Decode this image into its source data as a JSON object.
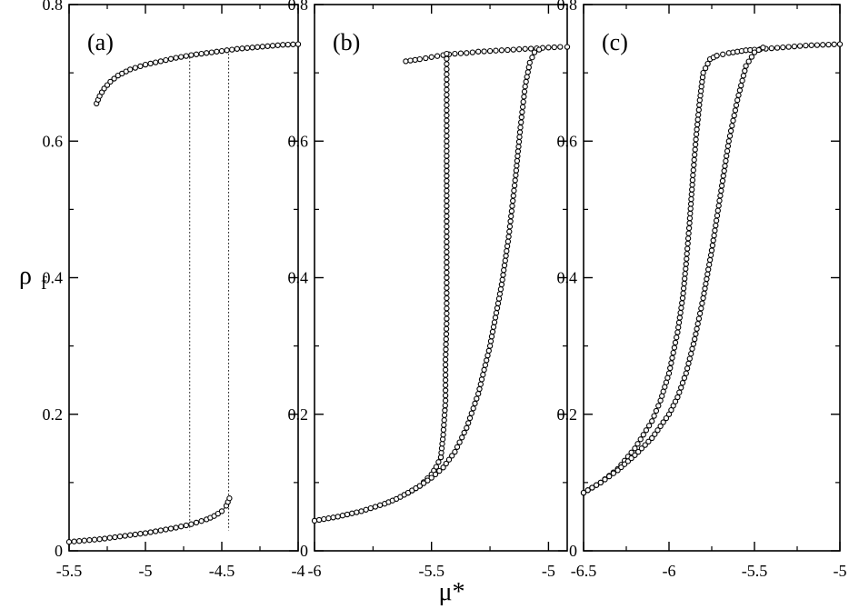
{
  "figure": {
    "xlabel": "μ*",
    "ylabel": "ρ",
    "ylabel_sub": "f"
  },
  "chart_data": [
    {
      "type": "scatter",
      "panel_label": "(a)",
      "xlim": [
        -5.5,
        -4.0
      ],
      "ylim": [
        0,
        0.8
      ],
      "xticks": [
        -5.5,
        -5,
        -4.5,
        -4
      ],
      "xtick_labels": [
        "-5.5",
        "-5",
        "-4.5",
        "-4"
      ],
      "yticks": [
        0,
        0.2,
        0.4,
        0.6,
        0.8
      ],
      "ytick_labels": [
        "0",
        "0.2",
        "0.4",
        "0.6",
        "0.8"
      ],
      "grid": false,
      "upper_branch": {
        "x": [
          -5.32,
          -5.3,
          -5.27,
          -5.23,
          -5.18,
          -5.1,
          -5.0,
          -4.9,
          -4.8,
          -4.7,
          -4.6,
          -4.5,
          -4.4,
          -4.3,
          -4.2,
          -4.1,
          -4.0
        ],
        "y": [
          0.655,
          0.666,
          0.677,
          0.687,
          0.696,
          0.705,
          0.712,
          0.717,
          0.722,
          0.726,
          0.729,
          0.732,
          0.735,
          0.737,
          0.739,
          0.741,
          0.742
        ]
      },
      "lower_branch": {
        "x": [
          -5.5,
          -5.4,
          -5.3,
          -5.2,
          -5.1,
          -5.0,
          -4.9,
          -4.8,
          -4.7,
          -4.6,
          -4.55,
          -4.5,
          -4.47,
          -4.45
        ],
        "y": [
          0.013,
          0.015,
          0.017,
          0.02,
          0.023,
          0.026,
          0.03,
          0.034,
          0.039,
          0.046,
          0.051,
          0.058,
          0.066,
          0.077
        ]
      },
      "vertical_lines_x": [
        -4.71,
        -4.455
      ]
    },
    {
      "type": "scatter",
      "panel_label": "(b)",
      "xlim": [
        -6.0,
        -4.92
      ],
      "ylim": [
        0,
        0.8
      ],
      "xticks": [
        -6,
        -5.5,
        -5
      ],
      "xtick_labels": [
        "-6",
        "-5.5",
        "-5"
      ],
      "yticks": [
        0,
        0.2,
        0.4,
        0.6,
        0.8
      ],
      "ytick_labels": [
        "0",
        "0.2",
        "0.4",
        "0.6",
        "0.8"
      ],
      "grid": false,
      "upper_branch": {
        "x": [
          -5.61,
          -5.55,
          -5.5,
          -5.45,
          -5.4,
          -5.35,
          -5.3,
          -5.25,
          -5.2,
          -5.15,
          -5.1,
          -5.05,
          -5.0,
          -4.95,
          -4.92
        ],
        "y": [
          0.717,
          0.72,
          0.723,
          0.726,
          0.728,
          0.729,
          0.731,
          0.732,
          0.733,
          0.734,
          0.735,
          0.736,
          0.737,
          0.738,
          0.738
        ]
      },
      "lower_branch": {
        "x": [
          -6.0,
          -5.9,
          -5.8,
          -5.7,
          -5.65,
          -5.6,
          -5.55,
          -5.5,
          -5.48,
          -5.46
        ],
        "y": [
          0.044,
          0.05,
          0.058,
          0.069,
          0.076,
          0.085,
          0.095,
          0.112,
          0.123,
          0.137
        ]
      },
      "steep_curve": {
        "x": [
          -5.46,
          -5.45,
          -5.44,
          -5.44,
          -5.435,
          -5.435,
          -5.435,
          -5.435,
          -5.435,
          -5.435
        ],
        "y": [
          0.137,
          0.17,
          0.22,
          0.28,
          0.34,
          0.4,
          0.46,
          0.52,
          0.6,
          0.728
        ]
      },
      "gradual_curve": {
        "x": [
          -5.6,
          -5.55,
          -5.5,
          -5.45,
          -5.4,
          -5.35,
          -5.3,
          -5.25,
          -5.2,
          -5.17,
          -5.14,
          -5.12,
          -5.1,
          -5.08,
          -5.06,
          -5.04
        ],
        "y": [
          0.085,
          0.095,
          0.107,
          0.122,
          0.145,
          0.18,
          0.23,
          0.3,
          0.39,
          0.46,
          0.55,
          0.62,
          0.68,
          0.715,
          0.73,
          0.734
        ]
      }
    },
    {
      "type": "scatter",
      "panel_label": "(c)",
      "xlim": [
        -6.5,
        -5.0
      ],
      "ylim": [
        0,
        0.8
      ],
      "xticks": [
        -6.5,
        -6,
        -5.5,
        -5
      ],
      "xtick_labels": [
        "-6.5",
        "-6",
        "-5.5",
        "-5"
      ],
      "yticks": [
        0,
        0.2,
        0.4,
        0.6,
        0.8
      ],
      "ytick_labels": [
        "0",
        "0.2",
        "0.4",
        "0.6",
        "0.8"
      ],
      "grid": false,
      "upper_branch": {
        "x": [
          -5.72,
          -5.65,
          -5.6,
          -5.55,
          -5.5,
          -5.4,
          -5.3,
          -5.2,
          -5.1,
          -5.0
        ],
        "y": [
          0.725,
          0.729,
          0.731,
          0.733,
          0.734,
          0.736,
          0.738,
          0.74,
          0.741,
          0.742
        ]
      },
      "left_curve": {
        "x": [
          -6.5,
          -6.4,
          -6.3,
          -6.2,
          -6.1,
          -6.05,
          -6.0,
          -5.95,
          -5.92,
          -5.9,
          -5.88,
          -5.86,
          -5.84,
          -5.82,
          -5.8,
          -5.76,
          -5.72
        ],
        "y": [
          0.085,
          0.1,
          0.12,
          0.15,
          0.19,
          0.22,
          0.26,
          0.32,
          0.37,
          0.42,
          0.48,
          0.55,
          0.61,
          0.66,
          0.7,
          0.72,
          0.725
        ]
      },
      "right_curve": {
        "x": [
          -6.5,
          -6.4,
          -6.3,
          -6.2,
          -6.1,
          -6.0,
          -5.95,
          -5.9,
          -5.85,
          -5.8,
          -5.75,
          -5.7,
          -5.65,
          -5.6,
          -5.55,
          -5.5,
          -5.45
        ],
        "y": [
          0.085,
          0.1,
          0.118,
          0.14,
          0.165,
          0.2,
          0.225,
          0.26,
          0.31,
          0.37,
          0.44,
          0.52,
          0.6,
          0.66,
          0.71,
          0.73,
          0.737
        ]
      }
    }
  ]
}
